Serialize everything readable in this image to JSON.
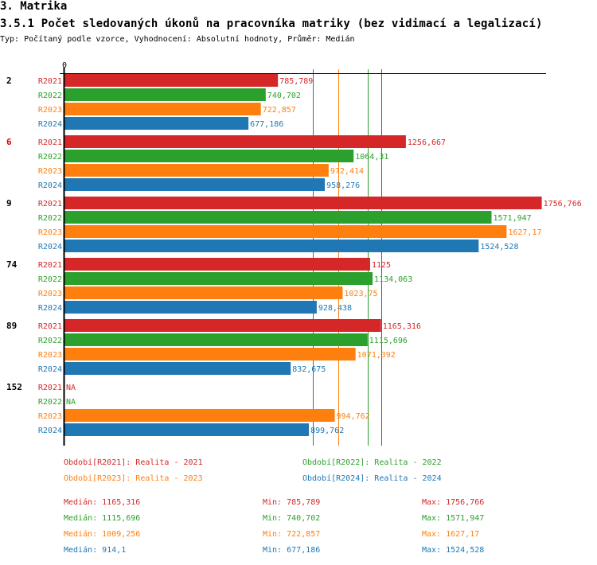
{
  "header": {
    "section": "3. Matrika",
    "title": "3.5.1 Počet sledovaných úkonů na pracovníka matriky (bez vidimací a legalizací)",
    "subtitle": "Typ: Počítaný podle vzorce, Vyhodnocení: Absolutní hodnoty, Průměr: Medián"
  },
  "chart_data": {
    "type": "bar",
    "orientation": "horizontal",
    "title": "3.5.1 Počet sledovaných úkonů na pracovníka matriky (bez vidimací a legalizací)",
    "xlabel": "",
    "ylabel": "",
    "axis_tick_label": "0",
    "xlim": [
      0,
      1780
    ],
    "grid": false,
    "legend_position": "bottom",
    "series_keys": [
      "R2021",
      "R2022",
      "R2023",
      "R2024"
    ],
    "colors": {
      "R2021": "#d62728",
      "R2022": "#2ca02c",
      "R2023": "#ff7f0e",
      "R2024": "#1f77b4"
    },
    "groups": [
      {
        "label": "2",
        "highlight": false,
        "values": {
          "R2021": 785.789,
          "R2022": 740.702,
          "R2023": 722.857,
          "R2024": 677.186
        },
        "labels": {
          "R2021": "785,789",
          "R2022": "740,702",
          "R2023": "722,857",
          "R2024": "677,186"
        }
      },
      {
        "label": "6",
        "highlight": true,
        "values": {
          "R2021": 1256.667,
          "R2022": 1064.31,
          "R2023": 972.414,
          "R2024": 958.276
        },
        "labels": {
          "R2021": "1256,667",
          "R2022": "1064,31",
          "R2023": "972,414",
          "R2024": "958,276"
        }
      },
      {
        "label": "9",
        "highlight": false,
        "values": {
          "R2021": 1756.766,
          "R2022": 1571.947,
          "R2023": 1627.17,
          "R2024": 1524.528
        },
        "labels": {
          "R2021": "1756,766",
          "R2022": "1571,947",
          "R2023": "1627,17",
          "R2024": "1524,528"
        }
      },
      {
        "label": "74",
        "highlight": false,
        "values": {
          "R2021": 1125,
          "R2022": 1134.063,
          "R2023": 1023.75,
          "R2024": 928.438
        },
        "labels": {
          "R2021": "1125",
          "R2022": "1134,063",
          "R2023": "1023,75",
          "R2024": "928,438"
        }
      },
      {
        "label": "89",
        "highlight": false,
        "values": {
          "R2021": 1165.316,
          "R2022": 1115.696,
          "R2023": 1071.392,
          "R2024": 832.675
        },
        "labels": {
          "R2021": "1165,316",
          "R2022": "1115,696",
          "R2023": "1071,392",
          "R2024": "832,675"
        }
      },
      {
        "label": "152",
        "highlight": false,
        "values": {
          "R2021": null,
          "R2022": null,
          "R2023": 994.762,
          "R2024": 899.762
        },
        "labels": {
          "R2021": "NA",
          "R2022": "NA",
          "R2023": "994,762",
          "R2024": "899,762"
        }
      }
    ],
    "median_lines": {
      "R2021": 1165.316,
      "R2022": 1115.696,
      "R2023": 1009.256,
      "R2024": 914.1
    },
    "legend": [
      {
        "key": "R2021",
        "text": "Období[R2021]: Realita - 2021"
      },
      {
        "key": "R2022",
        "text": "Období[R2022]: Realita - 2022"
      },
      {
        "key": "R2023",
        "text": "Období[R2023]: Realita - 2023"
      },
      {
        "key": "R2024",
        "text": "Období[R2024]: Realita - 2024"
      }
    ],
    "stats": [
      {
        "key": "R2021",
        "median": "Medián: 1165,316",
        "min": "Min: 785,789",
        "max": "Max: 1756,766"
      },
      {
        "key": "R2022",
        "median": "Medián: 1115,696",
        "min": "Min: 740,702",
        "max": "Max: 1571,947"
      },
      {
        "key": "R2023",
        "median": "Medián: 1009,256",
        "min": "Min: 722,857",
        "max": "Max: 1627,17"
      },
      {
        "key": "R2024",
        "median": "Medián: 914,1",
        "min": "Min: 677,186",
        "max": "Max: 1524,528"
      }
    ],
    "highlight_color": "#e00000"
  }
}
